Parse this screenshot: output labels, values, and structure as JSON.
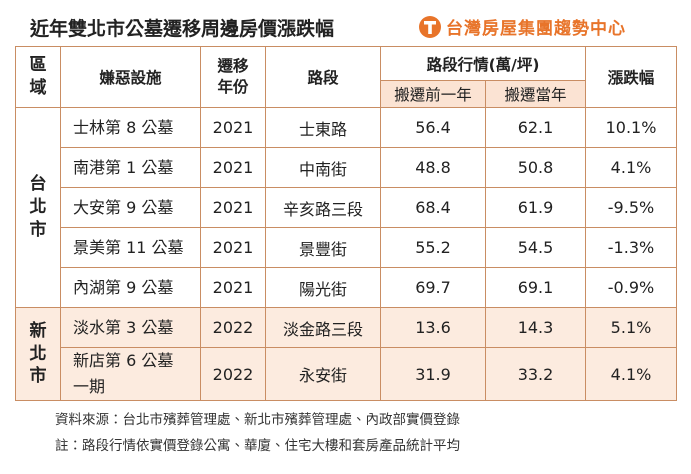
{
  "header": {
    "title": "近年雙北市公墓遷移周邊房價漲跌幅",
    "logo": "台灣房屋集團趨勢中心"
  },
  "table": {
    "headers": {
      "region": "區\n域",
      "facility": "嫌惡設施",
      "year": "遷移\n年份",
      "road": "路段",
      "market": "路段行情(萬/坪)",
      "before": "搬遷前一年",
      "current": "搬遷當年",
      "change": "漲跌幅"
    },
    "groups": [
      {
        "region": "台\n北\n市",
        "rows": [
          [
            "士林第 8 公墓",
            2021,
            "士東路",
            56.4,
            62.1,
            "10.1%"
          ],
          [
            "南港第 1 公墓",
            2021,
            "中南街",
            48.8,
            50.8,
            "4.1%"
          ],
          [
            "大安第 9 公墓",
            2021,
            "辛亥路三段",
            68.4,
            61.9,
            "-9.5%"
          ],
          [
            "景美第 11 公墓",
            2021,
            "景豐街",
            55.2,
            54.5,
            "-1.3%"
          ],
          [
            "內湖第 9 公墓",
            2021,
            "陽光街",
            69.7,
            69.1,
            "-0.9%"
          ]
        ]
      },
      {
        "region": "新\n北\n市",
        "rows": [
          [
            "淡水第 3 公墓",
            2022,
            "淡金路三段",
            13.6,
            14.3,
            "5.1%"
          ],
          [
            "新店第 6 公墓\n一期",
            2022,
            "永安街",
            31.9,
            33.2,
            "4.1%"
          ]
        ]
      }
    ]
  },
  "notes": [
    "資料來源：台北市殯葬管理處、新北市殯葬管理處、內政部實價登錄",
    "註：路段行情依實價登錄公寓、華廈、住宅大樓和套房產品統計平均"
  ]
}
